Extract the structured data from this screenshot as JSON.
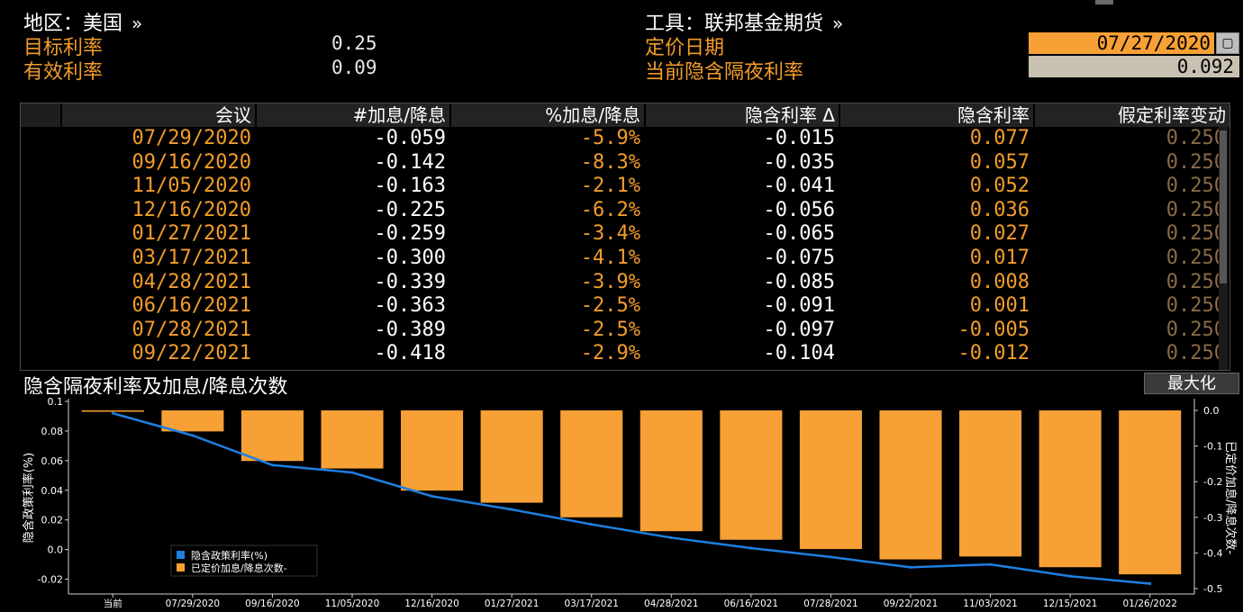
{
  "header": {
    "region_label": "地区：美国",
    "region_arrow": "»",
    "instrument_label": "工具：联邦基金期货",
    "instrument_arrow": "»",
    "target_rate_label": "目标利率",
    "target_rate_value": "0.25",
    "effective_rate_label": "有效利率",
    "effective_rate_value": "0.09",
    "pricing_date_label": "定价日期",
    "pricing_date_value": "07/27/2020",
    "current_implied_label": "当前隐含隔夜利率",
    "current_implied_value": "0.092"
  },
  "table": {
    "columns": [
      "会议",
      "#加息/降息",
      "%加息/降息",
      "隐含利率 Δ",
      "隐含利率",
      "假定利率变动"
    ],
    "rows": [
      [
        "07/29/2020",
        "-0.059",
        "-5.9%",
        "-0.015",
        "0.077",
        "0.250"
      ],
      [
        "09/16/2020",
        "-0.142",
        "-8.3%",
        "-0.035",
        "0.057",
        "0.250"
      ],
      [
        "11/05/2020",
        "-0.163",
        "-2.1%",
        "-0.041",
        "0.052",
        "0.250"
      ],
      [
        "12/16/2020",
        "-0.225",
        "-6.2%",
        "-0.056",
        "0.036",
        "0.250"
      ],
      [
        "01/27/2021",
        "-0.259",
        "-3.4%",
        "-0.065",
        "0.027",
        "0.250"
      ],
      [
        "03/17/2021",
        "-0.300",
        "-4.1%",
        "-0.075",
        "0.017",
        "0.250"
      ],
      [
        "04/28/2021",
        "-0.339",
        "-3.9%",
        "-0.085",
        "0.008",
        "0.250"
      ],
      [
        "06/16/2021",
        "-0.363",
        "-2.5%",
        "-0.091",
        "0.001",
        "0.250"
      ],
      [
        "07/28/2021",
        "-0.389",
        "-2.5%",
        "-0.097",
        "-0.005",
        "0.250"
      ],
      [
        "09/22/2021",
        "-0.418",
        "-2.9%",
        "-0.104",
        "-0.012",
        "0.250"
      ]
    ]
  },
  "chart_section": {
    "title": "隐含隔夜利率及加息/降息次数",
    "maximize_label": "最大化"
  },
  "chart_data": {
    "type": "bar",
    "categories": [
      "当前",
      "07/29/2020",
      "09/16/2020",
      "11/05/2020",
      "12/16/2020",
      "01/27/2021",
      "03/17/2021",
      "04/28/2021",
      "06/16/2021",
      "07/28/2021",
      "09/22/2021",
      "11/03/2021",
      "12/15/2021",
      "01/26/2022"
    ],
    "series": [
      {
        "name": "隐含政策利率(%)",
        "type": "line",
        "axis": "left",
        "color": "#1e7fe0",
        "values": [
          0.092,
          0.077,
          0.057,
          0.052,
          0.036,
          0.027,
          0.017,
          0.008,
          0.001,
          -0.005,
          -0.012,
          -0.01,
          -0.018,
          -0.023
        ]
      },
      {
        "name": "已定价加息/降息次数-",
        "type": "bar",
        "axis": "right",
        "color": "#f7a035",
        "values": [
          0.0,
          -0.059,
          -0.142,
          -0.163,
          -0.225,
          -0.259,
          -0.3,
          -0.339,
          -0.363,
          -0.389,
          -0.418,
          -0.41,
          -0.44,
          -0.46
        ]
      }
    ],
    "ylabel_left": "隐含政策利率(%)",
    "ylabel_right": "已定价加息/降息次数-",
    "ylim_left": [
      -0.03,
      0.1
    ],
    "yticks_left": [
      "0.1",
      "0.08",
      "0.06",
      "0.04",
      "0.02",
      "0.0",
      "-0.02"
    ],
    "ylim_right": [
      -0.5,
      0.0
    ],
    "yticks_right": [
      "0.0",
      "-0.1",
      "-0.2",
      "-0.3",
      "-0.4",
      "-0.5"
    ],
    "legend_position": "bottom-left",
    "grid": false
  },
  "colors": {
    "accent_orange": "#f39c2b",
    "bar_orange": "#f7a035",
    "line_blue": "#1e7fe0"
  }
}
